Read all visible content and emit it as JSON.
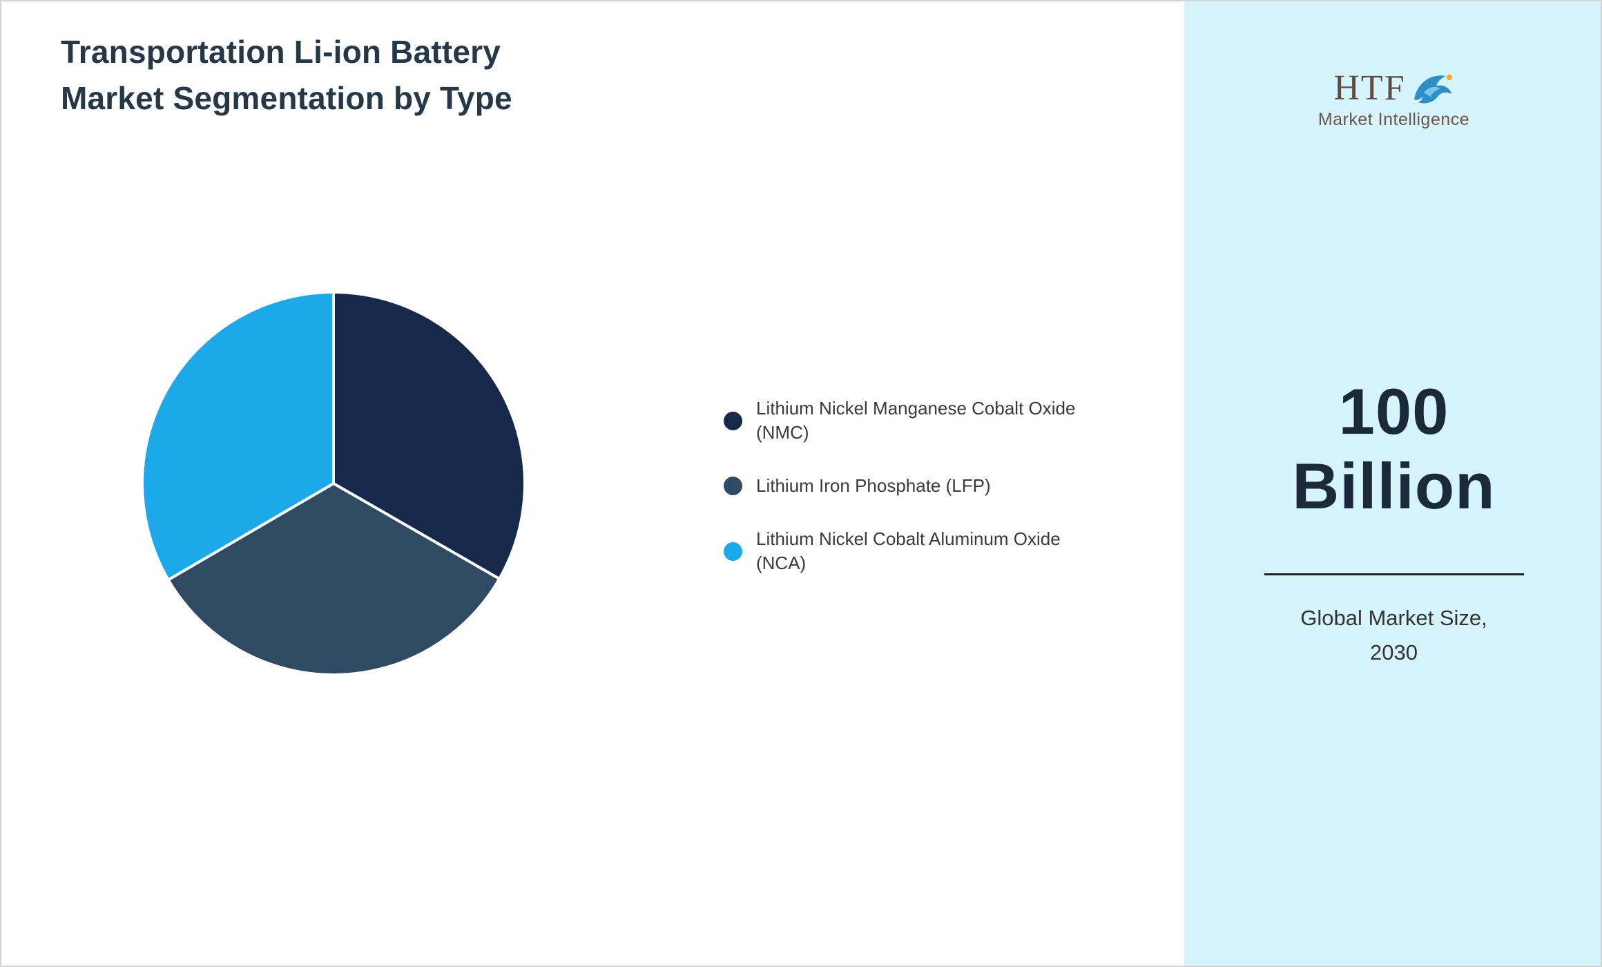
{
  "page": {
    "title_line1": "Transportation Li-ion Battery",
    "title_line2": "Market Segmentation by Type"
  },
  "chart_data": {
    "type": "pie",
    "title": "Transportation Li-ion Battery Market Segmentation by Type",
    "labels": [
      "Lithium Nickel Manganese Cobalt Oxide (NMC)",
      "Lithium Iron Phosphate (LFP)",
      "Lithium Nickel Cobalt Aluminum Oxide (NCA)"
    ],
    "values": [
      33.3,
      33.3,
      33.4
    ],
    "colors": [
      "#17294a",
      "#2f4a63",
      "#1ca9ea"
    ],
    "legend_position": "right",
    "start_angle_deg": 0,
    "direction": "clockwise",
    "slice_separator_color": "#ffffff"
  },
  "sidebar": {
    "background": "#d5f4fb",
    "logo": {
      "brand": "HTF",
      "tagline": "Market Intelligence",
      "icon": "dolphin-icon",
      "icon_colors": {
        "dolphin": "#2e8fc7",
        "accent": "#f5a623"
      }
    },
    "stat_line1": "100",
    "stat_line2": "Billion",
    "caption_line1": "Global Market Size,",
    "caption_line2": "2030"
  }
}
